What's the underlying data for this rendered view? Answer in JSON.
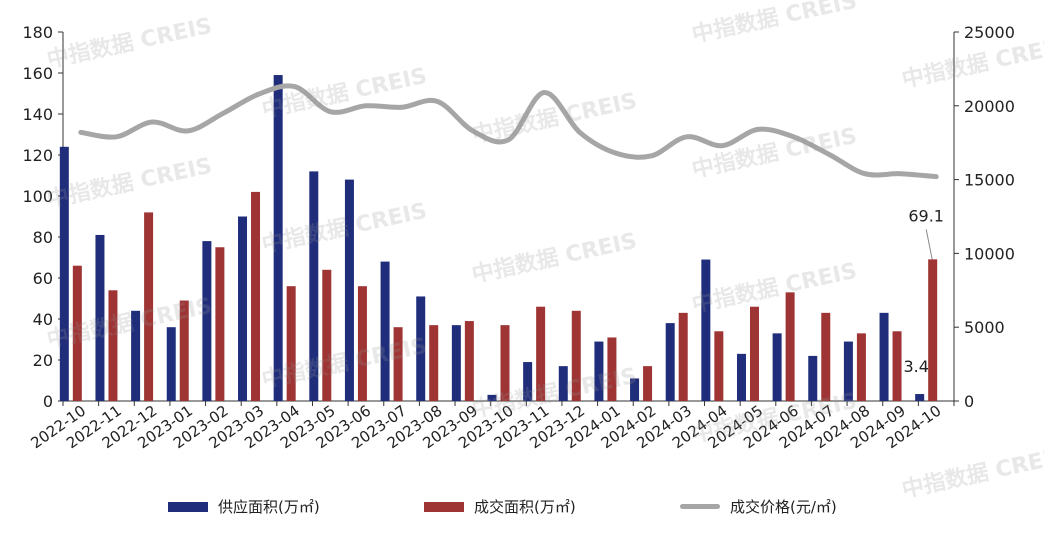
{
  "chart_data": {
    "type": "bar",
    "categories": [
      "2022-10",
      "2022-11",
      "2022-12",
      "2023-01",
      "2023-02",
      "2023-03",
      "2023-04",
      "2023-05",
      "2023-06",
      "2023-07",
      "2023-08",
      "2023-09",
      "2023-10",
      "2023-11",
      "2023-12",
      "2024-01",
      "2024-02",
      "2024-03",
      "2024-04",
      "2024-05",
      "2024-06",
      "2024-07",
      "2024-08",
      "2024-09",
      "2024-10"
    ],
    "series": [
      {
        "name": "供应面积(万㎡)",
        "type": "bar",
        "axis": "left",
        "color": "#1f2d7a",
        "values": [
          124,
          81,
          44,
          36,
          78,
          90,
          159,
          112,
          108,
          68,
          51,
          37,
          3,
          19,
          17,
          29,
          11,
          38,
          69,
          23,
          33,
          22,
          29,
          43,
          3.4
        ]
      },
      {
        "name": "成交面积(万㎡)",
        "type": "bar",
        "axis": "right-left",
        "color": "#9e3434",
        "values": [
          66,
          54,
          92,
          49,
          75,
          102,
          56,
          64,
          56,
          36,
          37,
          39,
          37,
          46,
          44,
          31,
          17,
          43,
          34,
          46,
          53,
          43,
          33,
          34,
          69.1
        ]
      },
      {
        "name": "成交价格(元/㎡)",
        "type": "line",
        "axis": "right",
        "color": "#a6a6a6",
        "values": [
          18200,
          17900,
          18900,
          18300,
          19500,
          20800,
          21300,
          19600,
          20000,
          19900,
          20300,
          18300,
          17700,
          20900,
          18200,
          16800,
          16600,
          17900,
          17300,
          18400,
          17900,
          16700,
          15400,
          15400,
          15200
        ]
      }
    ],
    "yleft": {
      "min": 0,
      "max": 180,
      "ticks": [
        0,
        20,
        40,
        60,
        80,
        100,
        120,
        140,
        160,
        180
      ]
    },
    "yright": {
      "min": 0,
      "max": 25000,
      "ticks": [
        0,
        5000,
        10000,
        15000,
        20000,
        25000
      ]
    },
    "data_labels": [
      {
        "series": 1,
        "index": 24,
        "text": "69.1"
      },
      {
        "series": 0,
        "index": 24,
        "text": "3.4"
      }
    ],
    "legend_position": "bottom",
    "grid": false
  },
  "watermark": "中指数据 CREIS"
}
